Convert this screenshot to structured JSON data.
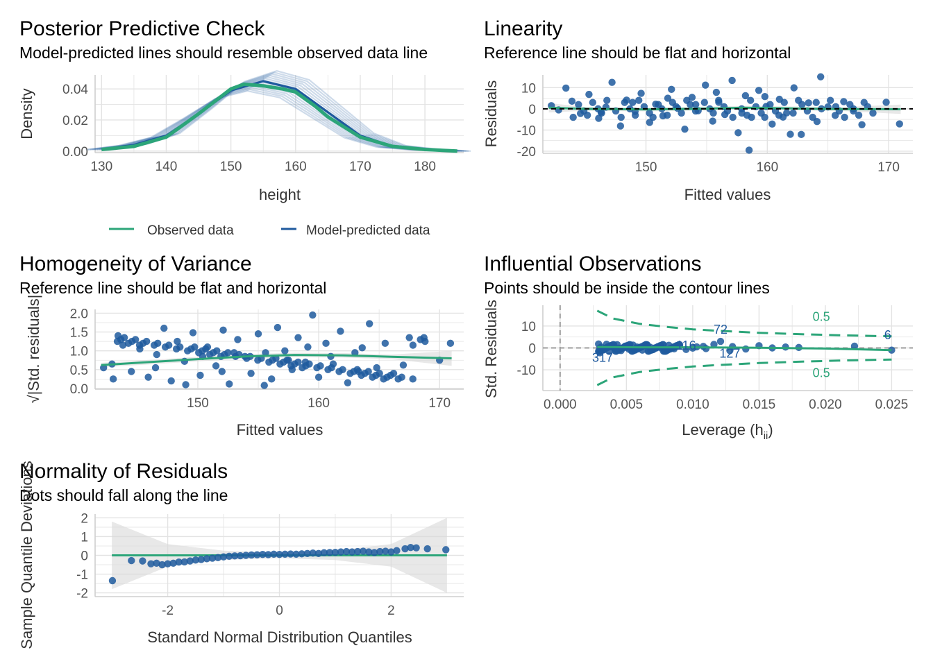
{
  "colors": {
    "observed": "#2CA579",
    "predicted": "#1F5A9E",
    "grid": "#E3E3E3",
    "text": "#000000",
    "ci": "#D9D9D9",
    "contour_ann": "#2CA579",
    "point_ann": "#1F5A9E",
    "refline": "#9E9E9E"
  },
  "chart_data": [
    {
      "id": "ppc",
      "type": "line",
      "title": "Posterior Predictive Check",
      "subtitle": "Model-predicted lines should resemble observed data line",
      "xlabel": "height",
      "ylabel": "Density",
      "xlim": [
        129,
        186
      ],
      "ylim": [
        -0.001,
        0.049
      ],
      "xticks": [
        "130",
        "140",
        "150",
        "160",
        "170",
        "180"
      ],
      "yticks": [
        "0.00",
        "0.02",
        "0.04"
      ],
      "grid": true,
      "legend": {
        "position": "bottom",
        "items": [
          "Observed data",
          "Model-predicted data"
        ]
      },
      "series": [
        {
          "name": "Observed data",
          "x": [
            130,
            135,
            140,
            145,
            150,
            152,
            155,
            158,
            160,
            163,
            165,
            170,
            175,
            180,
            185
          ],
          "y": [
            0.001,
            0.003,
            0.009,
            0.024,
            0.04,
            0.043,
            0.042,
            0.04,
            0.038,
            0.029,
            0.022,
            0.009,
            0.003,
            0.001,
            0.0
          ]
        },
        {
          "name": "Model-predicted data",
          "x": [
            130,
            135,
            140,
            145,
            150,
            155,
            160,
            165,
            170,
            175,
            180,
            185
          ],
          "y": [
            0.001,
            0.004,
            0.01,
            0.024,
            0.039,
            0.045,
            0.04,
            0.025,
            0.01,
            0.003,
            0.001,
            0.0
          ]
        }
      ]
    },
    {
      "id": "linearity",
      "type": "scatter",
      "title": "Linearity",
      "subtitle": "Reference line should be flat and horizontal",
      "xlabel": "Fitted values",
      "ylabel": "Residuals",
      "xlim": [
        141.5,
        172
      ],
      "ylim": [
        -21,
        16
      ],
      "xticks": [
        "150",
        "160",
        "170"
      ],
      "yticks": [
        "10",
        "0",
        "-10",
        "-20"
      ],
      "grid": true,
      "reference_line": 0,
      "smooth": {
        "x": [
          142,
          145,
          150,
          155,
          158,
          162,
          166,
          171
        ],
        "y": [
          0.5,
          0.0,
          -0.3,
          0.1,
          0.5,
          0.2,
          -0.1,
          -0.2
        ]
      },
      "points": [
        [
          142.2,
          1.5
        ],
        [
          142.8,
          -0.5
        ],
        [
          143.4,
          9.8
        ],
        [
          143.9,
          3.6
        ],
        [
          144.6,
          -2.2
        ],
        [
          145.3,
          6.8
        ],
        [
          146.1,
          -4.5
        ],
        [
          146.7,
          0.8
        ],
        [
          147.2,
          12.5
        ],
        [
          147.9,
          -8.1
        ],
        [
          148.4,
          4.1
        ],
        [
          149.1,
          -1.2
        ],
        [
          149.6,
          7.3
        ],
        [
          150.3,
          -6.4
        ],
        [
          150.8,
          2.2
        ],
        [
          151.4,
          -3.3
        ],
        [
          152.1,
          9.2
        ],
        [
          152.6,
          0.3
        ],
        [
          153.2,
          -9.6
        ],
        [
          153.8,
          5.4
        ],
        [
          154.3,
          -0.9
        ],
        [
          154.9,
          11.2
        ],
        [
          155.5,
          -5.8
        ],
        [
          156.0,
          3.1
        ],
        [
          156.5,
          -2.7
        ],
        [
          157.1,
          13.4
        ],
        [
          157.6,
          -11.3
        ],
        [
          158.2,
          6.2
        ],
        [
          158.7,
          -4.0
        ],
        [
          159.3,
          8.7
        ],
        [
          159.9,
          1.1
        ],
        [
          160.4,
          -7.2
        ],
        [
          161.0,
          4.5
        ],
        [
          161.6,
          -1.9
        ],
        [
          162.2,
          9.9
        ],
        [
          162.8,
          -12.1
        ],
        [
          163.4,
          2.8
        ],
        [
          164.1,
          -6.0
        ],
        [
          164.4,
          15.1
        ],
        [
          165.0,
          0.9
        ],
        [
          165.6,
          -3.1
        ],
        [
          166.3,
          3.4
        ],
        [
          167.1,
          -1.0
        ],
        [
          167.8,
          -7.5
        ],
        [
          169.8,
          3.1
        ],
        [
          170.9,
          -7.1
        ],
        [
          158.5,
          -19.5
        ],
        [
          161.9,
          -12.0
        ],
        [
          146.3,
          -1.5
        ],
        [
          148.9,
          3.0
        ],
        [
          151.8,
          5.0
        ],
        [
          154.1,
          2.0
        ],
        [
          155.8,
          7.8
        ],
        [
          157.9,
          -2.0
        ],
        [
          159.8,
          5.8
        ],
        [
          161.3,
          -3.9
        ]
      ]
    },
    {
      "id": "homogeneity",
      "type": "scatter",
      "title": "Homogeneity of Variance",
      "subtitle": "Reference line should be flat and horizontal",
      "xlabel": "Fitted values",
      "ylabel": "√|Std. residuals|",
      "xlim": [
        141.5,
        172
      ],
      "ylim": [
        -0.02,
        2.1
      ],
      "xticks": [
        "150",
        "160",
        "170"
      ],
      "yticks": [
        "2.0",
        "1.5",
        "1.0",
        "0.5",
        "0.0"
      ],
      "grid": true,
      "smooth": {
        "x": [
          142,
          146,
          150,
          154,
          158,
          162,
          166,
          171
        ],
        "y": [
          0.62,
          0.7,
          0.78,
          0.85,
          0.89,
          0.88,
          0.84,
          0.8
        ]
      },
      "points": [
        [
          142.2,
          0.55
        ],
        [
          142.9,
          0.65
        ],
        [
          143.4,
          1.4
        ],
        [
          143.8,
          1.15
        ],
        [
          144.5,
          0.45
        ],
        [
          145.2,
          1.05
        ],
        [
          145.9,
          0.3
        ],
        [
          146.6,
          0.9
        ],
        [
          147.2,
          1.6
        ],
        [
          147.8,
          0.2
        ],
        [
          148.3,
          1.25
        ],
        [
          148.9,
          0.72
        ],
        [
          149.6,
          1.48
        ],
        [
          150.2,
          0.35
        ],
        [
          150.8,
          1.1
        ],
        [
          151.5,
          0.6
        ],
        [
          152.1,
          1.55
        ],
        [
          152.6,
          0.12
        ],
        [
          153.3,
          1.3
        ],
        [
          153.9,
          0.85
        ],
        [
          154.4,
          0.4
        ],
        [
          155.0,
          1.45
        ],
        [
          155.6,
          0.95
        ],
        [
          156.1,
          0.25
        ],
        [
          156.6,
          1.62
        ],
        [
          157.2,
          1.0
        ],
        [
          157.8,
          0.5
        ],
        [
          158.3,
          1.35
        ],
        [
          158.9,
          0.7
        ],
        [
          159.5,
          1.95
        ],
        [
          160.0,
          0.3
        ],
        [
          160.6,
          1.2
        ],
        [
          161.2,
          0.65
        ],
        [
          161.8,
          1.52
        ],
        [
          162.4,
          0.15
        ],
        [
          163.0,
          0.95
        ],
        [
          163.6,
          1.08
        ],
        [
          164.2,
          1.72
        ],
        [
          164.8,
          0.55
        ],
        [
          165.5,
          1.2
        ],
        [
          166.2,
          0.4
        ],
        [
          167.0,
          0.62
        ],
        [
          167.8,
          1.15
        ],
        [
          168.8,
          1.25
        ],
        [
          170.0,
          0.75
        ],
        [
          170.9,
          1.2
        ],
        [
          149.0,
          0.1
        ],
        [
          155.5,
          0.08
        ],
        [
          146.5,
          0.55
        ],
        [
          150.4,
          0.85
        ],
        [
          153.0,
          0.95
        ],
        [
          157.5,
          0.75
        ],
        [
          159.1,
          1.1
        ],
        [
          161.0,
          0.85
        ],
        [
          163.3,
          0.45
        ],
        [
          152.0,
          0.45
        ]
      ]
    },
    {
      "id": "influence",
      "type": "scatter",
      "title": "Influential Observations",
      "subtitle": "Points should be inside the contour lines",
      "xlabel": "Leverage (hii)",
      "ylabel": "Std. Residuals",
      "xlim": [
        -0.0013,
        0.0266
      ],
      "ylim": [
        -19.5,
        19.5
      ],
      "xticks": [
        "0.000",
        "0.005",
        "0.010",
        "0.015",
        "0.020",
        "0.025"
      ],
      "yticks": [
        "10",
        "0",
        "-10"
      ],
      "grid": true,
      "contour_label": "0.5",
      "contour_upper": {
        "x": [
          0.0028,
          0.004,
          0.006,
          0.008,
          0.01,
          0.012,
          0.015,
          0.018,
          0.021,
          0.025
        ],
        "y": [
          17.0,
          13.4,
          11.0,
          9.6,
          8.5,
          7.8,
          6.9,
          6.3,
          5.8,
          5.3
        ]
      },
      "contour_lower": {
        "x": [
          0.0028,
          0.004,
          0.006,
          0.008,
          0.01,
          0.012,
          0.015,
          0.018,
          0.021,
          0.025
        ],
        "y": [
          -17.0,
          -13.4,
          -11.0,
          -9.6,
          -8.5,
          -7.8,
          -6.9,
          -6.3,
          -5.8,
          -5.3
        ]
      },
      "smooth": {
        "x": [
          0.0028,
          0.006,
          0.01,
          0.015,
          0.02,
          0.025
        ],
        "y": [
          0.4,
          0.3,
          0.3,
          0.1,
          -0.3,
          -1.0
        ]
      },
      "labels": [
        {
          "text": "6",
          "x": 0.0247,
          "y": 4.0
        },
        {
          "text": "72",
          "x": 0.0121,
          "y": 6.5
        },
        {
          "text": "116",
          "x": 0.0095,
          "y": -0.8
        },
        {
          "text": "127",
          "x": 0.0128,
          "y": -4.5
        },
        {
          "text": "317",
          "x": 0.0032,
          "y": -6.3
        }
      ],
      "points": [
        [
          0.025,
          -1.0
        ],
        [
          0.0222,
          0.8
        ],
        [
          0.018,
          0.2
        ],
        [
          0.016,
          0.0
        ],
        [
          0.015,
          1.0
        ],
        [
          0.014,
          -0.5
        ],
        [
          0.0128,
          -1.2
        ],
        [
          0.0121,
          3.0
        ],
        [
          0.0116,
          1.6
        ],
        [
          0.011,
          -0.3
        ],
        [
          0.0103,
          0.5
        ],
        [
          0.0095,
          -0.7
        ],
        [
          0.009,
          0.9
        ],
        [
          0.0086,
          -0.4
        ],
        [
          0.0082,
          1.2
        ],
        [
          0.0078,
          -1.5
        ],
        [
          0.0074,
          0.6
        ],
        [
          0.007,
          -0.8
        ],
        [
          0.0066,
          1.0
        ],
        [
          0.0062,
          -1.0
        ],
        [
          0.0058,
          0.4
        ],
        [
          0.0055,
          1.3
        ],
        [
          0.0052,
          -0.6
        ],
        [
          0.0049,
          0.8
        ],
        [
          0.0046,
          -1.2
        ],
        [
          0.0043,
          1.5
        ],
        [
          0.0041,
          -0.3
        ],
        [
          0.0039,
          0.9
        ],
        [
          0.0037,
          -1.6
        ],
        [
          0.0035,
          1.7
        ],
        [
          0.0033,
          -0.9
        ],
        [
          0.0031,
          0.4
        ],
        [
          0.003,
          -2.2
        ],
        [
          0.0029,
          1.8
        ],
        [
          0.003,
          0.0
        ],
        [
          0.0034,
          -0.2
        ],
        [
          0.004,
          0.3
        ],
        [
          0.0044,
          -0.1
        ],
        [
          0.005,
          0.2
        ],
        [
          0.006,
          0.1
        ],
        [
          0.0068,
          0.3
        ],
        [
          0.0076,
          0.0
        ],
        [
          0.013,
          0.6
        ],
        [
          0.017,
          0.4
        ],
        [
          0.01,
          -0.1
        ],
        [
          0.0108,
          0.7
        ]
      ]
    },
    {
      "id": "normality",
      "type": "scatter",
      "title": "Normality of Residuals",
      "subtitle": "Dots should fall along the line",
      "xlabel": "Standard Normal Distribution Quantiles",
      "ylabel": "Sample Quantile Deviations",
      "xlim": [
        -3.3,
        3.3
      ],
      "ylim": [
        -2.2,
        2.2
      ],
      "xticks": [
        "-2",
        "0",
        "2"
      ],
      "yticks": [
        "2",
        "1",
        "0",
        "-1",
        "-2"
      ],
      "grid": true,
      "reference_line": 0,
      "ci_band": {
        "x": [
          -3.0,
          -2.0,
          -1.0,
          0.0,
          1.0,
          2.0,
          3.0
        ],
        "half": [
          1.8,
          0.6,
          0.25,
          0.15,
          0.25,
          0.6,
          2.0
        ]
      },
      "points": [
        [
          -2.99,
          -1.35
        ],
        [
          -2.65,
          -0.28
        ],
        [
          -2.45,
          -0.3
        ],
        [
          -2.3,
          -0.45
        ],
        [
          -2.2,
          -0.42
        ],
        [
          -2.1,
          -0.5
        ],
        [
          -2.0,
          -0.45
        ],
        [
          -1.9,
          -0.42
        ],
        [
          -1.8,
          -0.36
        ],
        [
          -1.7,
          -0.35
        ],
        [
          -1.6,
          -0.3
        ],
        [
          -1.5,
          -0.25
        ],
        [
          -1.4,
          -0.22
        ],
        [
          -1.3,
          -0.18
        ],
        [
          -1.2,
          -0.15
        ],
        [
          -1.1,
          -0.12
        ],
        [
          -1.0,
          -0.08
        ],
        [
          -0.9,
          -0.05
        ],
        [
          -0.8,
          -0.03
        ],
        [
          -0.7,
          -0.02
        ],
        [
          -0.6,
          0.0
        ],
        [
          -0.5,
          0.02
        ],
        [
          -0.4,
          0.03
        ],
        [
          -0.3,
          0.05
        ],
        [
          -0.2,
          0.04
        ],
        [
          -0.1,
          0.06
        ],
        [
          0.0,
          0.05
        ],
        [
          0.1,
          0.06
        ],
        [
          0.2,
          0.07
        ],
        [
          0.3,
          0.06
        ],
        [
          0.4,
          0.08
        ],
        [
          0.5,
          0.1
        ],
        [
          0.6,
          0.12
        ],
        [
          0.7,
          0.1
        ],
        [
          0.8,
          0.14
        ],
        [
          0.9,
          0.15
        ],
        [
          1.0,
          0.16
        ],
        [
          1.1,
          0.18
        ],
        [
          1.2,
          0.2
        ],
        [
          1.3,
          0.18
        ],
        [
          1.4,
          0.2
        ],
        [
          1.5,
          0.22
        ],
        [
          1.6,
          0.18
        ],
        [
          1.7,
          0.15
        ],
        [
          1.8,
          0.2
        ],
        [
          1.9,
          0.22
        ],
        [
          2.0,
          0.18
        ],
        [
          2.1,
          0.25
        ],
        [
          2.25,
          0.35
        ],
        [
          2.35,
          0.42
        ],
        [
          2.45,
          0.4
        ],
        [
          2.65,
          0.35
        ],
        [
          2.98,
          0.3
        ]
      ]
    }
  ]
}
